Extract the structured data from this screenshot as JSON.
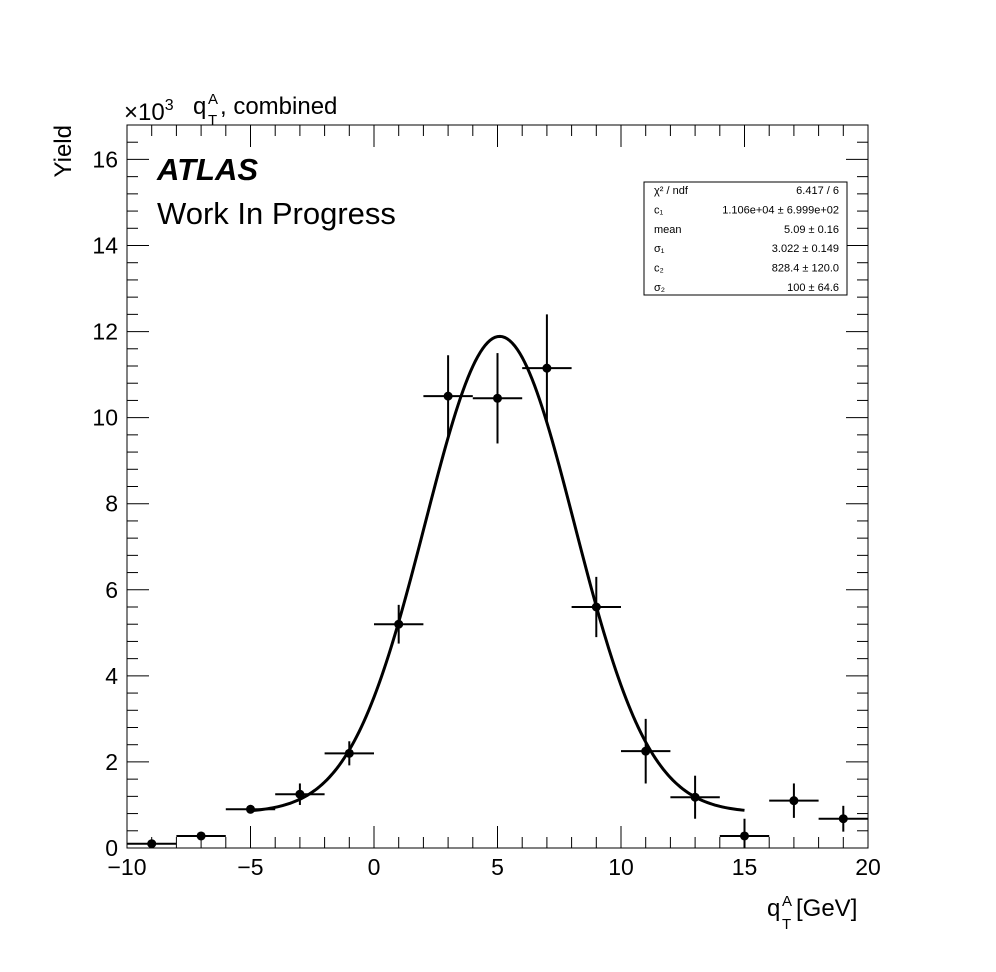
{
  "chart_data": {
    "type": "scatter",
    "title": "q_T^A, combined",
    "title_base": "q",
    "title_sup": "A",
    "title_sub": "T",
    "title_rest": ", combined",
    "y_multiplier_base": "×10",
    "y_multiplier_exp": "3",
    "xlabel": "q_T^A [GeV]",
    "xlabel_base": "q",
    "xlabel_sup": "A",
    "xlabel_sub": "T",
    "xlabel_rest": " [GeV]",
    "ylabel": "Yield",
    "xlim": [
      -10,
      20
    ],
    "ylim": [
      0,
      16.8
    ],
    "x_ticks": [
      -10,
      -5,
      0,
      5,
      10,
      15,
      20
    ],
    "x_tick_labels": [
      "−10",
      "−5",
      "0",
      "5",
      "10",
      "15",
      "20"
    ],
    "y_ticks": [
      0,
      2,
      4,
      6,
      8,
      10,
      12,
      14,
      16
    ],
    "y_tick_labels": [
      "0",
      "2",
      "4",
      "6",
      "8",
      "10",
      "12",
      "14",
      "16"
    ],
    "grid": false,
    "annotation_atlas": "ATLAS",
    "annotation_status": "Work In Progress",
    "points": [
      {
        "x": -9,
        "y": 0.1,
        "xerr": 1,
        "yerr": 0.05
      },
      {
        "x": -7,
        "y": 0.28,
        "xerr": 1,
        "yerr": 0.05
      },
      {
        "x": -5,
        "y": 0.9,
        "xerr": 1,
        "yerr": 0.1
      },
      {
        "x": -3,
        "y": 1.25,
        "xerr": 1,
        "yerr": 0.25
      },
      {
        "x": -1,
        "y": 2.2,
        "xerr": 1,
        "yerr": 0.28
      },
      {
        "x": 1,
        "y": 5.2,
        "xerr": 1,
        "yerr": 0.45
      },
      {
        "x": 3,
        "y": 10.5,
        "xerr": 1,
        "yerr": 0.95
      },
      {
        "x": 5,
        "y": 10.45,
        "xerr": 1,
        "yerr": 1.05
      },
      {
        "x": 7,
        "y": 11.15,
        "xerr": 1,
        "yerr": 1.25
      },
      {
        "x": 9,
        "y": 5.6,
        "xerr": 1,
        "yerr": 0.7
      },
      {
        "x": 11,
        "y": 2.25,
        "xerr": 1,
        "yerr": 0.75
      },
      {
        "x": 13,
        "y": 1.18,
        "xerr": 1,
        "yerr": 0.5
      },
      {
        "x": 15,
        "y": 0.28,
        "xerr": 1,
        "yerr": 0.4
      },
      {
        "x": 17,
        "y": 1.1,
        "xerr": 1,
        "yerr": 0.4
      },
      {
        "x": 19,
        "y": 0.68,
        "xerr": 1,
        "yerr": 0.3
      }
    ],
    "fit": {
      "range": [
        -5,
        15
      ],
      "c1": 11060,
      "mean": 5.09,
      "sigma1": 3.022,
      "c2": 828.4,
      "sigma2": 100
    },
    "stats_box": [
      {
        "label": "χ² / ndf",
        "value": "6.417 / 6"
      },
      {
        "label": "c₁",
        "value": "1.106e+04 ± 6.999e+02"
      },
      {
        "label": "mean",
        "value": "5.09 ± 0.16"
      },
      {
        "label": "σ₁",
        "value": "3.022 ± 0.149"
      },
      {
        "label": "c₂",
        "value": "828.4 ± 120.0"
      },
      {
        "label": "σ₂",
        "value": "100 ± 64.6"
      }
    ]
  }
}
